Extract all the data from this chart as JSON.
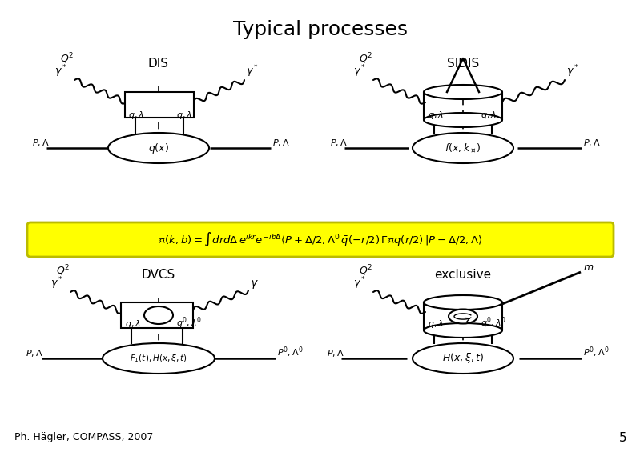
{
  "title": "Typical processes",
  "title_fontsize": 18,
  "footer_text": "Ph. Hägler, COMPASS, 2007",
  "page_number": "5",
  "bg_color": "#ffffff",
  "formula_bg": "#ffff00",
  "formula_text": "$\\mathcal{W}(k,b) = \\int drd\\Delta\\, e^{ikr} e^{-ib\\Delta} \\langle P+\\Delta/2, \\Lambda^\\prime\\, \\bar{q}(-r/2)\\, \\Gamma\\mathcal{U}q(r/2)\\, |P-\\Delta/2, \\Lambda\\rangle$",
  "label_DIS": "DIS",
  "label_SIDIS": "SIDIS",
  "label_DVCS": "DVCS",
  "label_exclusive": "exclusive"
}
